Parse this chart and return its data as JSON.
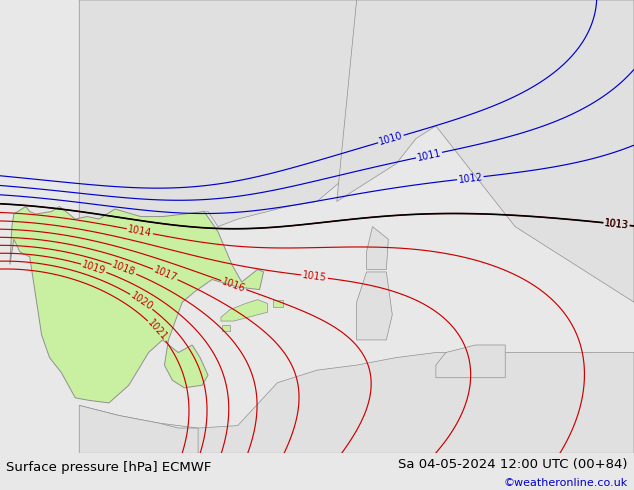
{
  "title_left": "Surface pressure [hPa] ECMWF",
  "title_right": "Sa 04-05-2024 12:00 UTC (00+84)",
  "watermark": "©weatheronline.co.uk",
  "bg_color": "#e8e8e8",
  "land_color_iberia": "#c8f0a0",
  "land_color_france": "#e0e0e0",
  "land_color_africa": "#e0e0e0",
  "sea_color": "#dcdcdc",
  "contour_color_red": "#cc0000",
  "contour_color_blue": "#0000cc",
  "contour_color_black": "#000000",
  "contour_color_gray": "#909090",
  "title_fontsize": 9.5,
  "watermark_color": "#0000cc",
  "bottom_bar_color": "#ffffff",
  "xlim": [
    -10,
    22
  ],
  "ylim": [
    34,
    52
  ]
}
